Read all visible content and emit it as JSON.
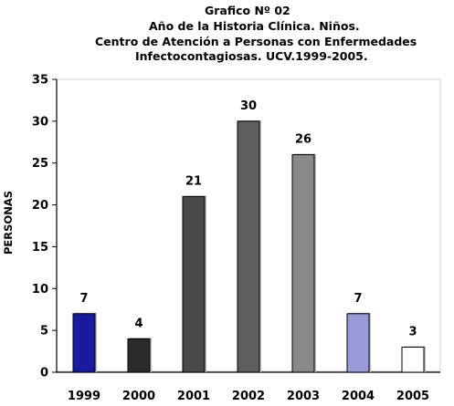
{
  "chart_data": {
    "type": "bar",
    "title_lines": [
      "Grafico Nº 02",
      "Año de la Historia Clínica. Niños.",
      "Centro de Atención a Personas con Enfermedades",
      "Infectocontagiosas. UCV.1999-2005."
    ],
    "xlabel": "",
    "ylabel": "PERSONAS",
    "categories": [
      "1999",
      "2000",
      "2001",
      "2002",
      "2003",
      "2004",
      "2005"
    ],
    "values": [
      7,
      4,
      21,
      30,
      26,
      7,
      3
    ],
    "data_labels": [
      "7",
      "4",
      "21",
      "30",
      "26",
      "7",
      "3"
    ],
    "ylim": [
      0,
      35
    ],
    "yticks": [
      "0",
      "5",
      "10",
      "15",
      "20",
      "25",
      "30",
      "35"
    ],
    "grid": false,
    "legend": "none",
    "bar_colors": [
      "#1a1aa0",
      "#2b2b2b",
      "#4a4a4a",
      "#5e5e5e",
      "#8a8a8a",
      "#9a9ad8",
      "#ffffff"
    ]
  }
}
